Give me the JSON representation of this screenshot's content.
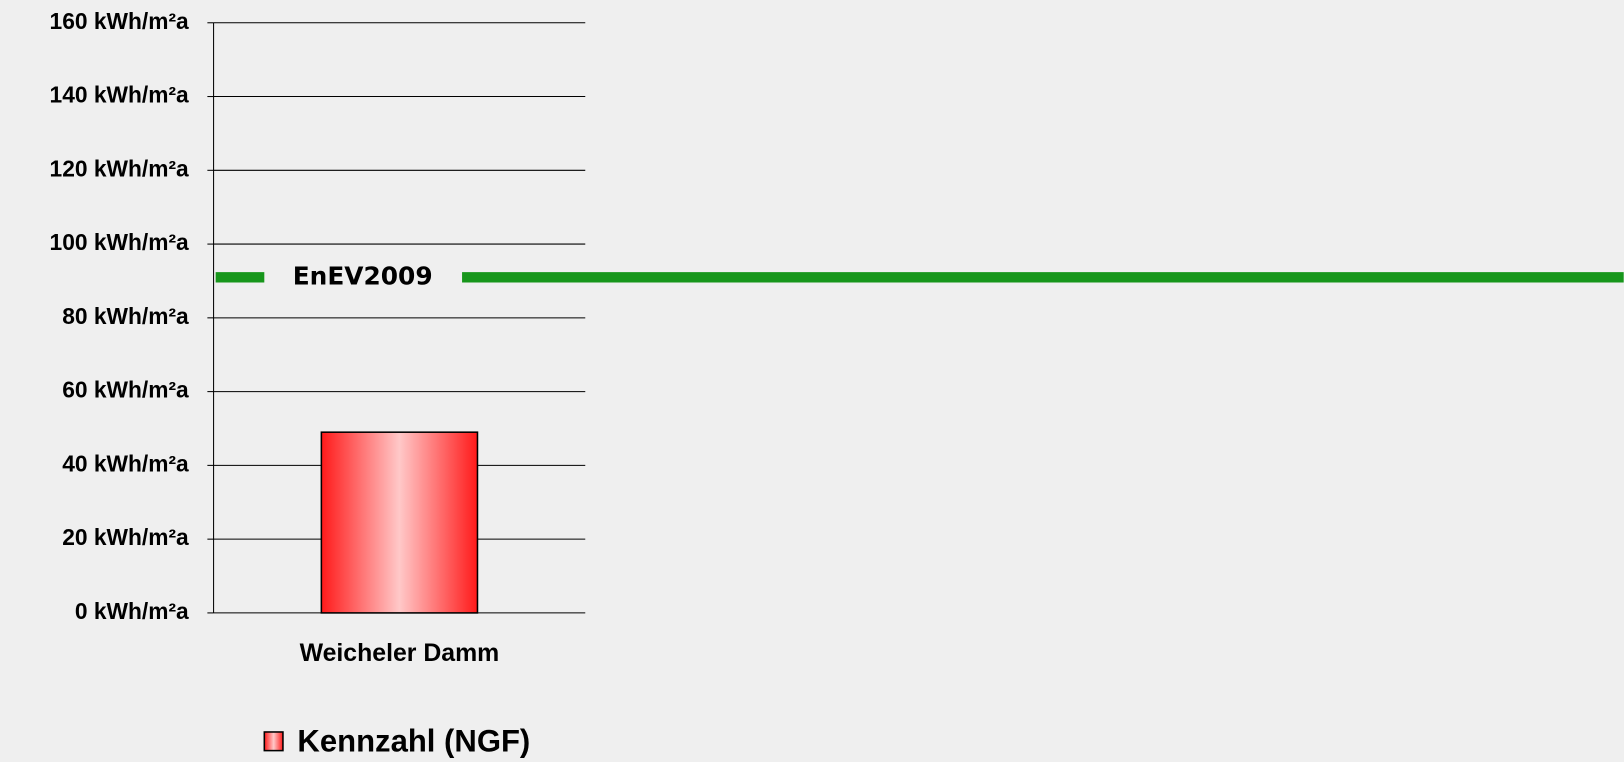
{
  "chart_data": {
    "type": "bar",
    "categories": [
      "Weicheler Damm"
    ],
    "series": [
      {
        "name": "Kennzahl (NGF)",
        "color": "#ff2020",
        "values": [
          49
        ]
      }
    ],
    "ylim": [
      0,
      160
    ],
    "yticks": [
      {
        "value": 0,
        "label": "0 kWh/m²a"
      },
      {
        "value": 20,
        "label": "20 kWh/m²a"
      },
      {
        "value": 40,
        "label": "40 kWh/m²a"
      },
      {
        "value": 60,
        "label": "60 kWh/m²a"
      },
      {
        "value": 80,
        "label": "80 kWh/m²a"
      },
      {
        "value": 100,
        "label": "100 kWh/m²a"
      },
      {
        "value": 120,
        "label": "120 kWh/m²a"
      },
      {
        "value": 140,
        "label": "140 kWh/m²a"
      },
      {
        "value": 160,
        "label": "160 kWh/m²a"
      }
    ],
    "grid": true,
    "legend": "bottom",
    "reference_line": {
      "value": 91,
      "label": "EnEV2009",
      "color": "#17961b"
    }
  }
}
